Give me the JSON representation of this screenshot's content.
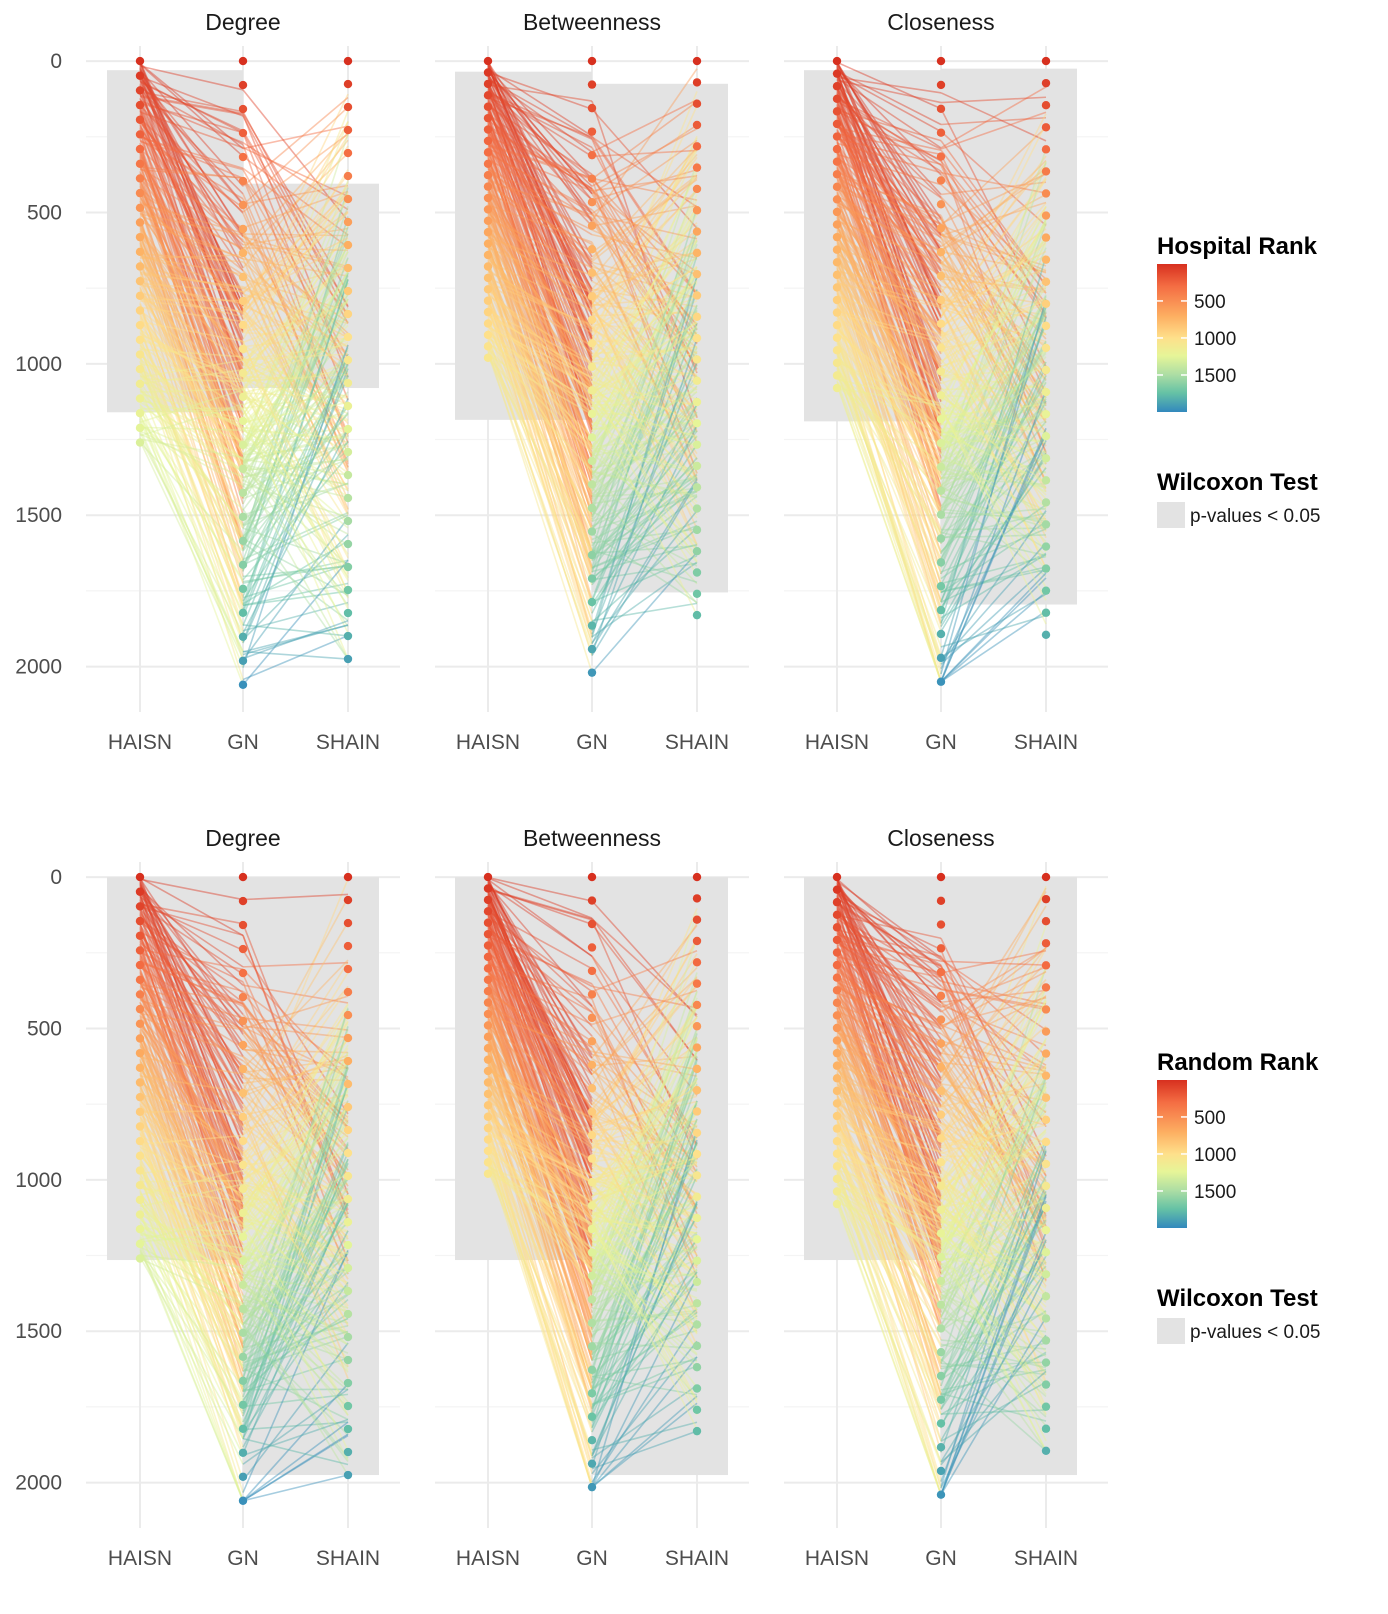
{
  "colors": {
    "grid": "#ebebeb",
    "sig_shade": "#e3e3e3",
    "palette": [
      "#d7301f",
      "#f46d43",
      "#fdae61",
      "#fee08b",
      "#e6f598",
      "#abdda4",
      "#66c2a5",
      "#3288bd"
    ]
  },
  "chart_data": [
    {
      "type": "line",
      "subtype": "parallel-coordinates",
      "row": "top",
      "panels": [
        "Degree",
        "Betweenness",
        "Closeness"
      ],
      "categories": [
        "HAISN",
        "GN",
        "SHAIN"
      ],
      "y_ticks": [
        0,
        500,
        1000,
        1500,
        2000
      ],
      "y_reversed": true,
      "ylim": [
        2150,
        -30
      ],
      "color_legend": {
        "title": "Hospital Rank",
        "ticks": [
          500,
          1000,
          1500
        ],
        "range": [
          1,
          2000
        ]
      },
      "shade_legend": {
        "title": "Wilcoxon Test",
        "label": "p-values < 0.05"
      },
      "series": [
        {
          "panel": "Degree",
          "rank_max": [
            1260,
            2060,
            1975
          ],
          "significant_ranges": [
            {
              "category": "HAISN",
              "from": 30,
              "to": 1160
            },
            {
              "category": "SHAIN",
              "from": 405,
              "to": 1080
            }
          ]
        },
        {
          "panel": "Betweenness",
          "rank_max": [
            980,
            2020,
            1830
          ],
          "significant_ranges": [
            {
              "category": "HAISN",
              "from": 35,
              "to": 1185
            },
            {
              "category": "SHAIN",
              "from": 75,
              "to": 1755
            }
          ]
        },
        {
          "panel": "Closeness",
          "rank_max": [
            1080,
            2050,
            1895
          ],
          "significant_ranges": [
            {
              "category": "HAISN",
              "from": 30,
              "to": 1190
            },
            {
              "category": "SHAIN",
              "from": 25,
              "to": 1795
            }
          ]
        }
      ]
    },
    {
      "type": "line",
      "subtype": "parallel-coordinates",
      "row": "bottom",
      "panels": [
        "Degree",
        "Betweenness",
        "Closeness"
      ],
      "categories": [
        "HAISN",
        "GN",
        "SHAIN"
      ],
      "y_ticks": [
        0,
        500,
        1000,
        1500,
        2000
      ],
      "y_reversed": true,
      "ylim": [
        2150,
        -30
      ],
      "color_legend": {
        "title": "Random Rank",
        "ticks": [
          500,
          1000,
          1500
        ],
        "range": [
          1,
          2000
        ]
      },
      "shade_legend": {
        "title": "Wilcoxon Test",
        "label": "p-values < 0.05"
      },
      "series": [
        {
          "panel": "Degree",
          "rank_max": [
            1260,
            2060,
            1975
          ],
          "significant_ranges": [
            {
              "category": "HAISN",
              "from": 0,
              "to": 1265
            },
            {
              "category": "SHAIN",
              "from": 0,
              "to": 1975
            }
          ]
        },
        {
          "panel": "Betweenness",
          "rank_max": [
            980,
            2015,
            1830
          ],
          "significant_ranges": [
            {
              "category": "HAISN",
              "from": 0,
              "to": 1265
            },
            {
              "category": "SHAIN",
              "from": 0,
              "to": 1975
            }
          ]
        },
        {
          "panel": "Closeness",
          "rank_max": [
            1080,
            2040,
            1895
          ],
          "significant_ranges": [
            {
              "category": "HAISN",
              "from": 0,
              "to": 1265
            },
            {
              "category": "SHAIN",
              "from": 0,
              "to": 1975
            }
          ]
        }
      ]
    }
  ]
}
